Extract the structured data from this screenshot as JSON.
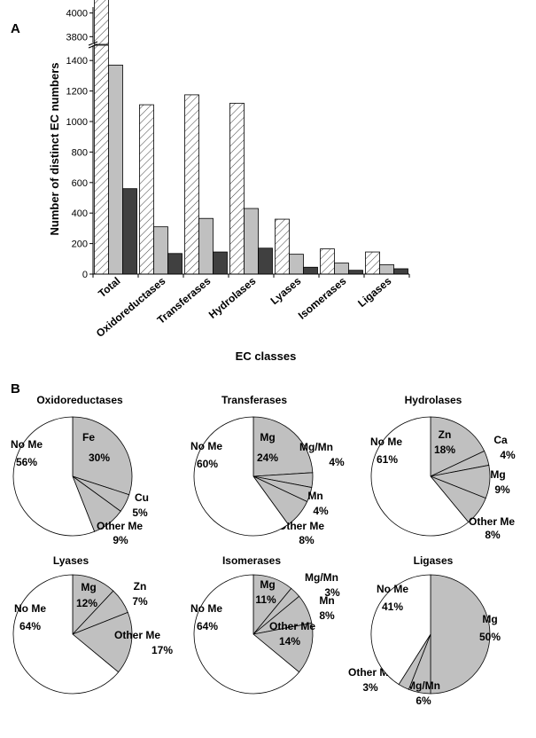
{
  "panel_labels": {
    "a": "A",
    "b": "B"
  },
  "chart_data": [
    {
      "type": "bar",
      "panel": "A",
      "xlabel": "EC classes",
      "ylabel": "Number of distinct EC numbers",
      "categories": [
        "Total",
        "Oxidoreductases",
        "Transferases",
        "Hydrolases",
        "Lyases",
        "Isomerases",
        "Ligases"
      ],
      "series": [
        {
          "values": [
            4600,
            1110,
            1175,
            1120,
            360,
            165,
            145
          ],
          "fill": "hatched"
        },
        {
          "values": [
            1370,
            310,
            365,
            430,
            130,
            72,
            62
          ],
          "fill": "#c0c0c0"
        },
        {
          "values": [
            560,
            135,
            145,
            170,
            45,
            25,
            35
          ],
          "fill": "#404040"
        }
      ],
      "ylim_lower": [
        0,
        1500
      ],
      "ylim_upper": [
        3750,
        4050
      ],
      "axis_break": true,
      "yticks": [
        0,
        200,
        400,
        600,
        800,
        1000,
        1200,
        1400,
        3800,
        4000
      ],
      "colors": {
        "hatched": "#ffffff",
        "light": "#c0c0c0",
        "dark": "#404040"
      }
    },
    {
      "type": "pie",
      "panel": "B",
      "title": "Oxidoreductases",
      "slices": [
        {
          "name": "Fe",
          "pct": "30%",
          "value": 30,
          "color": "#c0c0c0"
        },
        {
          "name": "Cu",
          "pct": "5%",
          "value": 5,
          "color": "#c0c0c0"
        },
        {
          "name": "Other Me",
          "pct": "9%",
          "value": 9,
          "color": "#c0c0c0"
        },
        {
          "name": "No Me",
          "pct": "56%",
          "value": 56,
          "color": "#ffffff"
        }
      ]
    },
    {
      "type": "pie",
      "panel": "B",
      "title": "Transferases",
      "slices": [
        {
          "name": "Mg",
          "pct": "24%",
          "value": 24,
          "color": "#c0c0c0"
        },
        {
          "name": "Mg/Mn",
          "pct": "4%",
          "value": 4,
          "color": "#c0c0c0"
        },
        {
          "name": "Mn",
          "pct": "4%",
          "value": 4,
          "color": "#c0c0c0"
        },
        {
          "name": "Other Me",
          "pct": "8%",
          "value": 8,
          "color": "#c0c0c0"
        },
        {
          "name": "No Me",
          "pct": "60%",
          "value": 60,
          "color": "#ffffff"
        }
      ]
    },
    {
      "type": "pie",
      "panel": "B",
      "title": "Hydrolases",
      "slices": [
        {
          "name": "Zn",
          "pct": "18%",
          "value": 18,
          "color": "#c0c0c0"
        },
        {
          "name": "Ca",
          "pct": "4%",
          "value": 4,
          "color": "#c0c0c0"
        },
        {
          "name": "Mg",
          "pct": "9%",
          "value": 9,
          "color": "#c0c0c0"
        },
        {
          "name": "Other Me",
          "pct": "8%",
          "value": 8,
          "color": "#c0c0c0"
        },
        {
          "name": "No Me",
          "pct": "61%",
          "value": 61,
          "color": "#ffffff"
        }
      ]
    },
    {
      "type": "pie",
      "panel": "B",
      "title": "Lyases",
      "slices": [
        {
          "name": "Mg",
          "pct": "12%",
          "value": 12,
          "color": "#c0c0c0"
        },
        {
          "name": "Zn",
          "pct": "7%",
          "value": 7,
          "color": "#c0c0c0"
        },
        {
          "name": "Other Me",
          "pct": "17%",
          "value": 17,
          "color": "#c0c0c0"
        },
        {
          "name": "No Me",
          "pct": "64%",
          "value": 64,
          "color": "#ffffff"
        }
      ]
    },
    {
      "type": "pie",
      "panel": "B",
      "title": "Isomerases",
      "slices": [
        {
          "name": "Mg",
          "pct": "11%",
          "value": 11,
          "color": "#c0c0c0"
        },
        {
          "name": "Mg/Mn",
          "pct": "3%",
          "value": 3,
          "color": "#c0c0c0"
        },
        {
          "name": "Mn",
          "pct": "8%",
          "value": 8,
          "color": "#c0c0c0"
        },
        {
          "name": "Other Me",
          "pct": "14%",
          "value": 14,
          "color": "#c0c0c0"
        },
        {
          "name": "No Me",
          "pct": "64%",
          "value": 64,
          "color": "#ffffff"
        }
      ]
    },
    {
      "type": "pie",
      "panel": "B",
      "title": "Ligases",
      "slices": [
        {
          "name": "Mg",
          "pct": "50%",
          "value": 50,
          "color": "#c0c0c0"
        },
        {
          "name": "Mg/Mn",
          "pct": "6%",
          "value": 6,
          "color": "#c0c0c0"
        },
        {
          "name": "Other Me",
          "pct": "3%",
          "value": 3,
          "color": "#c0c0c0"
        },
        {
          "name": "No Me",
          "pct": "41%",
          "value": 41,
          "color": "#ffffff"
        }
      ]
    }
  ]
}
